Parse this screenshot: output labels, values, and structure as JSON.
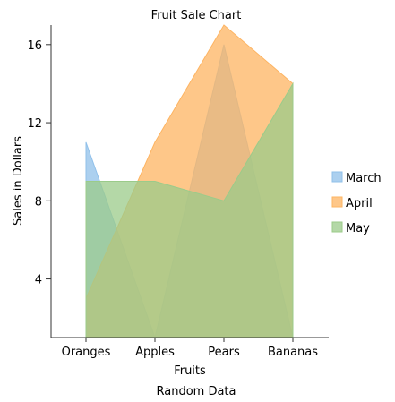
{
  "chart_data": {
    "type": "area",
    "title": "Fruit Sale Chart",
    "xlabel": "Fruits",
    "ylabel": "Sales in Dollars",
    "footer": "Random Data",
    "categories": [
      "Oranges",
      "Apples",
      "Pears",
      "Bananas"
    ],
    "ylim": [
      1,
      17
    ],
    "yticks": [
      4,
      8,
      12,
      16
    ],
    "legend_position": "right",
    "grid": false,
    "series": [
      {
        "name": "March",
        "values": [
          11,
          1,
          16,
          1
        ],
        "color": "#90c0ea"
      },
      {
        "name": "April",
        "values": [
          3,
          11,
          17,
          14
        ],
        "color": "#fdb462"
      },
      {
        "name": "May",
        "values": [
          9,
          9,
          8,
          14
        ],
        "color": "#9bcb8a"
      }
    ]
  }
}
